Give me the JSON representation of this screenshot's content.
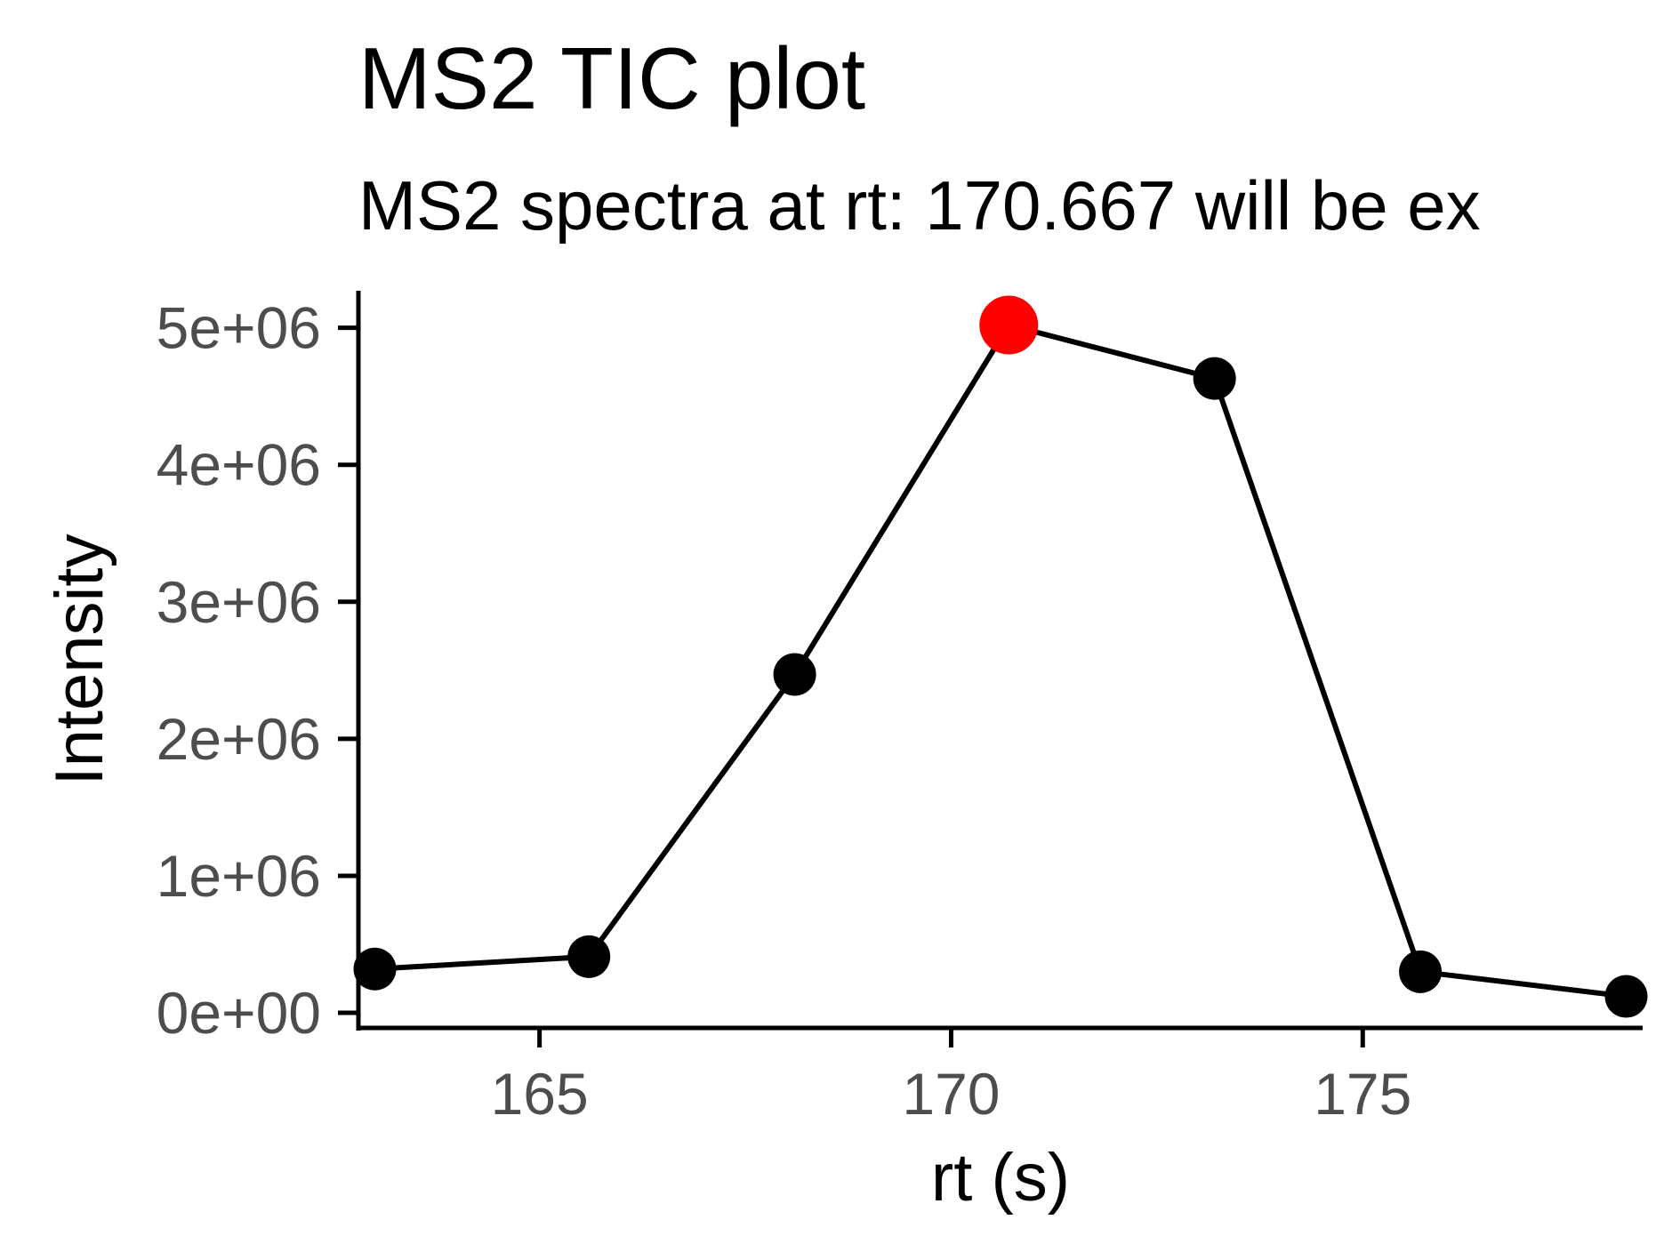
{
  "chart_data": {
    "type": "line",
    "title": "MS2 TIC plot",
    "subtitle": "MS2 spectra at rt: 170.667 will be ex",
    "xlabel": "rt (s)",
    "ylabel": "Intensity",
    "xlim": [
      162.8,
      178.4
    ],
    "ylim": [
      -110000,
      5270000
    ],
    "x_ticks": [
      165,
      170,
      175
    ],
    "x_tick_labels": [
      "165",
      "170",
      "175"
    ],
    "y_ticks": [
      0,
      1000000,
      2000000,
      3000000,
      4000000,
      5000000
    ],
    "y_tick_labels": [
      "0e+00",
      "1e+06",
      "2e+06",
      "3e+06",
      "4e+06",
      "5e+06"
    ],
    "grid": false,
    "series": [
      {
        "x": [
          163.0,
          165.6,
          168.1,
          170.7,
          173.2,
          175.7,
          178.2
        ],
        "y": [
          320000,
          410000,
          2470000,
          5020000,
          4630000,
          300000,
          120000
        ]
      }
    ],
    "highlight": {
      "x": 170.7,
      "y": 5020000,
      "color": "#ff0000"
    },
    "colors": {
      "line": "#000000",
      "point": "#000000",
      "highlight": "#ff0000",
      "axis": "#000000",
      "tick_label": "#4d4d4d"
    }
  }
}
